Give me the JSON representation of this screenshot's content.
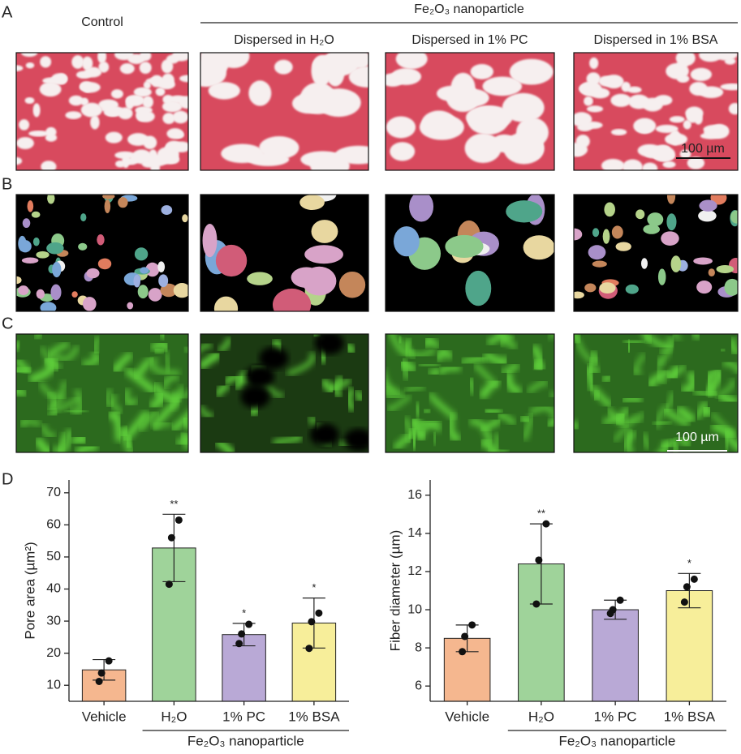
{
  "figure": {
    "panel_labels": [
      "A",
      "B",
      "C",
      "D"
    ],
    "control": "Control",
    "group": "Fe₂O₃ nanoparticle",
    "conditions": [
      "Dispersed in H₂O",
      "Dispersed in 1% PC",
      "Dispersed in 1% BSA"
    ],
    "scale_bars": [
      "100 µm",
      "100 µm"
    ]
  },
  "chart_data": [
    {
      "type": "bar",
      "ylabel": "Pore  area (µm²)",
      "categories": [
        "Vehicle",
        "H₂O",
        "1% PC",
        "1% BSA"
      ],
      "group_label": "Fe₂O₃ nanoparticle",
      "values": [
        14.8,
        52.8,
        25.8,
        29.4
      ],
      "errors": [
        3.2,
        10.5,
        3.5,
        7.8
      ],
      "points": [
        [
          17.6,
          13.8,
          11.2
        ],
        [
          61.5,
          56,
          41.5
        ],
        [
          29,
          26,
          23
        ],
        [
          32.5,
          29.8,
          21.5
        ]
      ],
      "significance": [
        null,
        "**",
        "*",
        "*"
      ],
      "colors": [
        "#f5b78f",
        "#9fd39a",
        "#b9a9d6",
        "#f7ee9a"
      ],
      "ylim": [
        5,
        74
      ],
      "yticks": [
        10,
        20,
        30,
        40,
        50,
        60,
        70
      ]
    },
    {
      "type": "bar",
      "ylabel": "Fiber diameter (µm)",
      "categories": [
        "Vehicle",
        "H₂O",
        "1% PC",
        "1% BSA"
      ],
      "group_label": "Fe₂O₃ nanoparticle",
      "values": [
        8.5,
        12.4,
        10.0,
        11.0
      ],
      "errors": [
        0.7,
        2.1,
        0.5,
        0.9
      ],
      "points": [
        [
          9.2,
          8.6,
          7.8
        ],
        [
          14.5,
          12.6,
          10.3
        ],
        [
          10.5,
          10.0,
          9.8
        ],
        [
          11.6,
          11.2,
          10.4
        ]
      ],
      "significance": [
        null,
        "**",
        null,
        "*"
      ],
      "colors": [
        "#f5b78f",
        "#9fd39a",
        "#b9a9d6",
        "#f7ee9a"
      ],
      "ylim": [
        5.2,
        16.8
      ],
      "yticks": [
        6,
        8,
        10,
        12,
        14,
        16
      ]
    }
  ]
}
